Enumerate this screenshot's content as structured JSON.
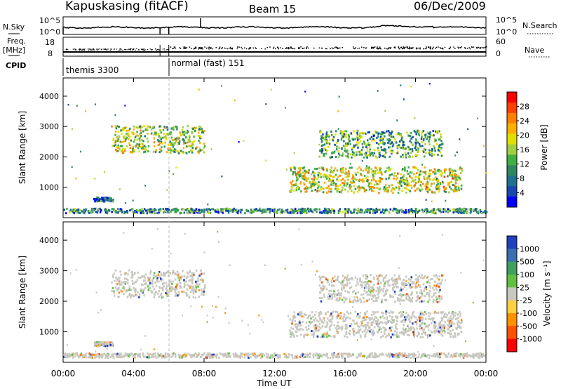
{
  "header": {
    "station": "Kapuskasing (fitACF)",
    "beam": "Beam 15",
    "date": "06/Dec/2009"
  },
  "strips": {
    "nsky": {
      "label": "N.Sky",
      "right_label": "N.Search",
      "ticks_left": [
        "10^5",
        "10^0"
      ],
      "ticks_right": [
        "10^5",
        "10^0"
      ]
    },
    "freq": {
      "label_line1": "Freq.",
      "label_line2": "[MHz]",
      "right_label": "Nave",
      "ticks_left": [
        "18",
        "8"
      ],
      "ticks_right": [
        "60",
        "0"
      ]
    },
    "cpid": {
      "label": "CPID",
      "segments": [
        {
          "name": "themis 3300",
          "start_hour": 0.0,
          "end_hour": 6.0
        },
        {
          "name": "normal (fast) 151",
          "start_hour": 6.0,
          "end_hour": 24.0
        }
      ]
    }
  },
  "x_axis": {
    "label": "Time UT",
    "tick_labels": [
      "00:00",
      "04:00",
      "08:00",
      "12:00",
      "16:00",
      "20:00",
      "00:00"
    ],
    "tick_hours": [
      0,
      4,
      8,
      12,
      16,
      20,
      24
    ]
  },
  "panels": {
    "power": {
      "ylabel": "Slant Range [km]",
      "colorbar_label": "Power [dB]",
      "colorbar_ticks": [
        "28",
        "24",
        "20",
        "16",
        "12",
        "8",
        "4"
      ],
      "colorbar_colors": [
        "#ff0000",
        "#ff4000",
        "#ff8000",
        "#ffb000",
        "#e0e000",
        "#a0d040",
        "#40b040",
        "#308860",
        "#207090",
        "#1848b0",
        "#0000ff"
      ]
    },
    "velocity": {
      "ylabel": "Slant Range [km]",
      "colorbar_label": "Velocity [m s⁻¹]",
      "colorbar_ticks": [
        "1000",
        "500",
        "100",
        "25",
        "-25",
        "-100",
        "-500",
        "-1000"
      ],
      "colorbar_colors": [
        "#2040c0",
        "#3870b0",
        "#40a060",
        "#60c040",
        "#c8c8c0",
        "#ffd040",
        "#ff9000",
        "#ff5000",
        "#ff0000"
      ]
    }
  },
  "chart_data": {
    "type": "heatmap",
    "x_range_hours": [
      0,
      24
    ],
    "y_range_km": [
      0,
      4600
    ],
    "y_ticks": [
      1000,
      2000,
      3000,
      4000
    ],
    "grid": false,
    "echo_regions": [
      {
        "t0": 2.7,
        "t1": 8.0,
        "r0": 2150,
        "r1": 3050,
        "power": 14,
        "velocity": 0
      },
      {
        "t0": 12.8,
        "t1": 22.6,
        "r0": 850,
        "r1": 1700,
        "power": 16,
        "velocity": 0
      },
      {
        "t0": 14.5,
        "t1": 21.5,
        "r0": 2000,
        "r1": 2900,
        "power": 10,
        "velocity": 0
      },
      {
        "t0": 0.0,
        "t1": 24.0,
        "r0": 180,
        "r1": 330,
        "power": 8,
        "velocity": 0
      },
      {
        "t0": 1.7,
        "t1": 2.8,
        "r0": 560,
        "r1": 700,
        "power": 6,
        "velocity": 0
      }
    ]
  }
}
